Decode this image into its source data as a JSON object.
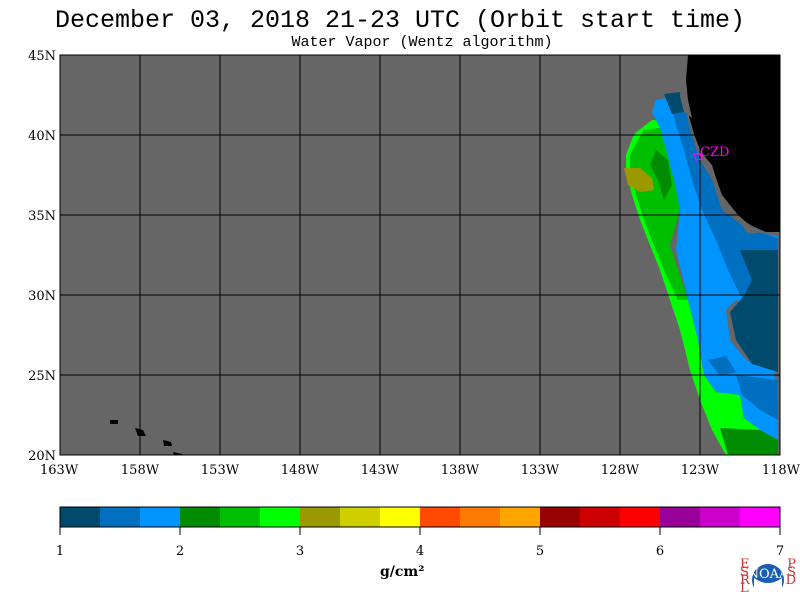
{
  "title": "December 03, 2018  21-23 UTC  (Orbit start time)",
  "subtitle": "Water Vapor (Wentz algorithm)",
  "lat_labels": [
    "45N",
    "40N",
    "35N",
    "30N",
    "25N",
    "20N"
  ],
  "lon_labels": [
    "163W",
    "158W",
    "153W",
    "148W",
    "143W",
    "138W",
    "133W",
    "128W",
    "123W",
    "118W"
  ],
  "lat_values": [
    45,
    40,
    35,
    30,
    25,
    20
  ],
  "lon_values": [
    -163,
    -158,
    -153,
    -148,
    -143,
    -138,
    -133,
    -128,
    -123,
    -118
  ],
  "station_label": "CZD",
  "colorbar": {
    "unit": "g/cm²",
    "ticks": [
      "1",
      "2",
      "3",
      "4",
      "5",
      "6",
      "7"
    ],
    "range": [
      1,
      7
    ],
    "colors": [
      "#004a6e",
      "#006fbf",
      "#0094ff",
      "#008c00",
      "#00bf00",
      "#00ff00",
      "#9a9a00",
      "#cfcf00",
      "#ffff00",
      "#ff4a00",
      "#ff7a00",
      "#ffa500",
      "#990000",
      "#cc0000",
      "#ff0000",
      "#990099",
      "#cc00cc",
      "#ff00ff"
    ]
  },
  "colors": {
    "no_data": "#666666",
    "land": "#000000",
    "station": "#ff00ff"
  },
  "logo": {
    "left_letters": "ESRL",
    "right_letters": "PSD",
    "center_text": "NOAA"
  }
}
